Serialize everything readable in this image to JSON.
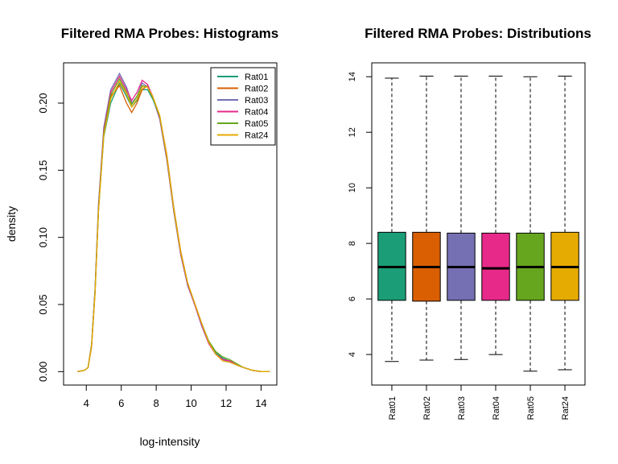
{
  "chart_data": [
    {
      "type": "line",
      "title": "Filtered RMA Probes: Histograms",
      "xlabel": "log-intensity",
      "ylabel": "density",
      "xlim": [
        2.7,
        14.9
      ],
      "ylim": [
        -0.01,
        0.23
      ],
      "xticks": [
        4,
        6,
        8,
        10,
        12,
        14
      ],
      "xtick_labels": [
        "4",
        "6",
        "8",
        "10",
        "12",
        "14"
      ],
      "yticks": [
        0.0,
        0.05,
        0.1,
        0.15,
        0.2
      ],
      "ytick_labels": [
        "0.00",
        "0.05",
        "0.10",
        "0.15",
        "0.20"
      ],
      "legend_position": "top-right",
      "series": [
        {
          "name": "Rat01",
          "color": "#1B9E77",
          "x": [
            3.5,
            3.9,
            4.1,
            4.3,
            4.5,
            4.7,
            5.0,
            5.4,
            5.9,
            6.3,
            6.6,
            6.9,
            7.2,
            7.5,
            7.8,
            8.2,
            8.6,
            9.0,
            9.4,
            9.8,
            10.2,
            10.6,
            11.0,
            11.4,
            11.8,
            12.2,
            12.6,
            13.0,
            13.5,
            14.0,
            14.5
          ],
          "y": [
            0.0,
            0.001,
            0.003,
            0.02,
            0.06,
            0.12,
            0.175,
            0.2,
            0.215,
            0.205,
            0.197,
            0.202,
            0.21,
            0.21,
            0.203,
            0.19,
            0.16,
            0.12,
            0.088,
            0.065,
            0.05,
            0.035,
            0.022,
            0.014,
            0.01,
            0.008,
            0.005,
            0.003,
            0.001,
            0.0,
            0.0
          ]
        },
        {
          "name": "Rat02",
          "color": "#D95F02",
          "x": [
            3.5,
            3.9,
            4.1,
            4.3,
            4.5,
            4.7,
            5.0,
            5.4,
            5.9,
            6.3,
            6.6,
            6.9,
            7.2,
            7.5,
            7.8,
            8.2,
            8.6,
            9.0,
            9.4,
            9.8,
            10.2,
            10.6,
            11.0,
            11.4,
            11.8,
            12.2,
            12.6,
            13.0,
            13.5,
            14.0,
            14.5
          ],
          "y": [
            0.0,
            0.001,
            0.003,
            0.018,
            0.058,
            0.12,
            0.178,
            0.205,
            0.213,
            0.2,
            0.193,
            0.2,
            0.21,
            0.213,
            0.205,
            0.19,
            0.162,
            0.123,
            0.09,
            0.066,
            0.051,
            0.036,
            0.022,
            0.013,
            0.009,
            0.008,
            0.005,
            0.003,
            0.001,
            0.0,
            0.0
          ]
        },
        {
          "name": "Rat03",
          "color": "#7570B3",
          "x": [
            3.5,
            3.9,
            4.1,
            4.3,
            4.5,
            4.7,
            5.0,
            5.4,
            5.9,
            6.3,
            6.6,
            6.9,
            7.2,
            7.5,
            7.8,
            8.2,
            8.6,
            9.0,
            9.4,
            9.8,
            10.2,
            10.6,
            11.0,
            11.4,
            11.8,
            12.2,
            12.6,
            13.0,
            13.5,
            14.0,
            14.5
          ],
          "y": [
            0.0,
            0.001,
            0.003,
            0.02,
            0.062,
            0.125,
            0.182,
            0.21,
            0.222,
            0.212,
            0.2,
            0.205,
            0.215,
            0.212,
            0.204,
            0.188,
            0.158,
            0.12,
            0.087,
            0.064,
            0.05,
            0.034,
            0.021,
            0.013,
            0.009,
            0.007,
            0.005,
            0.003,
            0.001,
            0.0,
            0.0
          ]
        },
        {
          "name": "Rat04",
          "color": "#E7298A",
          "x": [
            3.5,
            3.9,
            4.1,
            4.3,
            4.5,
            4.7,
            5.0,
            5.4,
            5.9,
            6.3,
            6.6,
            6.9,
            7.2,
            7.5,
            7.8,
            8.2,
            8.6,
            9.0,
            9.4,
            9.8,
            10.2,
            10.6,
            11.0,
            11.4,
            11.8,
            12.2,
            12.6,
            13.0,
            13.5,
            14.0,
            14.5
          ],
          "y": [
            0.0,
            0.001,
            0.003,
            0.02,
            0.06,
            0.122,
            0.18,
            0.208,
            0.22,
            0.21,
            0.202,
            0.208,
            0.217,
            0.214,
            0.205,
            0.189,
            0.159,
            0.121,
            0.088,
            0.065,
            0.05,
            0.035,
            0.021,
            0.013,
            0.009,
            0.008,
            0.005,
            0.003,
            0.001,
            0.0,
            0.0
          ]
        },
        {
          "name": "Rat05",
          "color": "#66A61E",
          "x": [
            3.5,
            3.9,
            4.1,
            4.3,
            4.5,
            4.7,
            5.0,
            5.4,
            5.9,
            6.3,
            6.6,
            6.9,
            7.2,
            7.5,
            7.8,
            8.2,
            8.6,
            9.0,
            9.4,
            9.8,
            10.2,
            10.6,
            11.0,
            11.4,
            11.8,
            12.2,
            12.6,
            13.0,
            13.5,
            14.0,
            14.5
          ],
          "y": [
            0.0,
            0.001,
            0.003,
            0.02,
            0.06,
            0.121,
            0.178,
            0.206,
            0.218,
            0.208,
            0.199,
            0.205,
            0.213,
            0.212,
            0.204,
            0.19,
            0.16,
            0.122,
            0.089,
            0.066,
            0.051,
            0.036,
            0.023,
            0.015,
            0.011,
            0.009,
            0.006,
            0.003,
            0.001,
            0.0,
            0.0
          ]
        },
        {
          "name": "Rat24",
          "color": "#E6AB02",
          "x": [
            3.5,
            3.9,
            4.1,
            4.3,
            4.5,
            4.7,
            5.0,
            5.4,
            5.9,
            6.3,
            6.6,
            6.9,
            7.2,
            7.5,
            7.8,
            8.2,
            8.6,
            9.0,
            9.4,
            9.8,
            10.2,
            10.6,
            11.0,
            11.4,
            11.8,
            12.2,
            12.6,
            13.0,
            13.5,
            14.0,
            14.5
          ],
          "y": [
            0.0,
            0.001,
            0.003,
            0.019,
            0.058,
            0.119,
            0.176,
            0.203,
            0.216,
            0.207,
            0.197,
            0.203,
            0.212,
            0.212,
            0.205,
            0.191,
            0.161,
            0.122,
            0.089,
            0.066,
            0.051,
            0.036,
            0.022,
            0.013,
            0.008,
            0.007,
            0.005,
            0.003,
            0.001,
            0.0,
            0.0
          ]
        }
      ]
    },
    {
      "type": "boxplot",
      "title": "Filtered RMA Probes: Distributions",
      "ylim": [
        2.9,
        14.5
      ],
      "yticks": [
        4,
        6,
        8,
        10,
        12,
        14
      ],
      "ytick_labels": [
        "4",
        "6",
        "8",
        "10",
        "12",
        "14"
      ],
      "categories": [
        "Rat01",
        "Rat02",
        "Rat03",
        "Rat04",
        "Rat05",
        "Rat24"
      ],
      "colors": [
        "#1B9E77",
        "#D95F02",
        "#7570B3",
        "#E7298A",
        "#66A61E",
        "#E6AB02"
      ],
      "boxes": [
        {
          "min": 3.75,
          "q1": 5.95,
          "median": 7.15,
          "q3": 8.4,
          "max": 13.95
        },
        {
          "min": 3.8,
          "q1": 5.92,
          "median": 7.15,
          "q3": 8.4,
          "max": 14.02
        },
        {
          "min": 3.82,
          "q1": 5.95,
          "median": 7.15,
          "q3": 8.37,
          "max": 14.02
        },
        {
          "min": 4.0,
          "q1": 5.95,
          "median": 7.1,
          "q3": 8.37,
          "max": 14.02
        },
        {
          "min": 3.4,
          "q1": 5.95,
          "median": 7.15,
          "q3": 8.37,
          "max": 14.0
        },
        {
          "min": 3.45,
          "q1": 5.95,
          "median": 7.15,
          "q3": 8.4,
          "max": 14.02
        }
      ]
    }
  ]
}
